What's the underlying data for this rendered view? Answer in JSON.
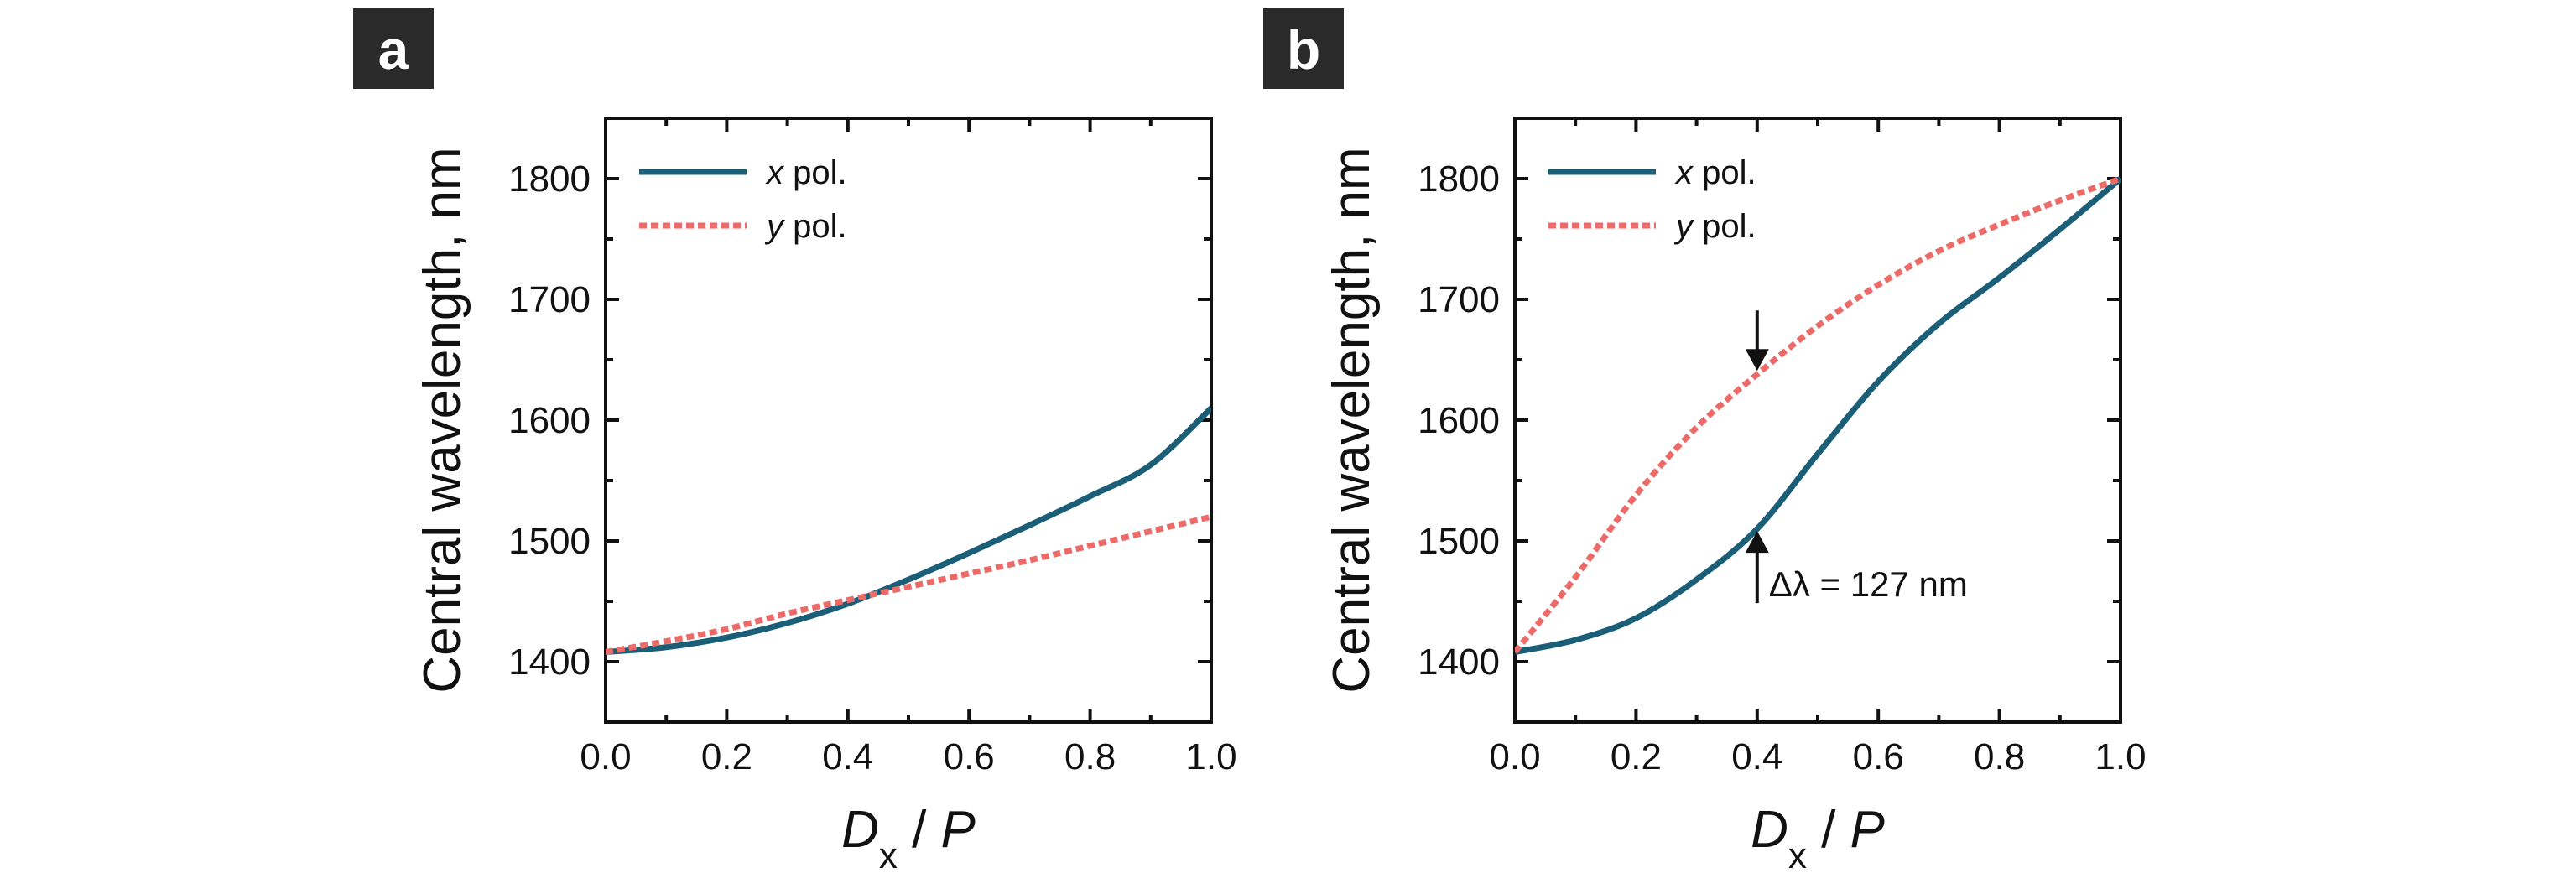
{
  "colors": {
    "x_series": "#1b5e78",
    "y_series": "#ec6a68",
    "axis": "#111111",
    "label_box": "#2a2a2a"
  },
  "chart_data": [
    {
      "panel": "a",
      "type": "line",
      "xlabel_main": "D",
      "xlabel_sub": "x",
      "xlabel_rest": " / P",
      "ylabel": "Central wavelength, nm",
      "xlim": [
        0.0,
        1.0
      ],
      "ylim": [
        1350,
        1850
      ],
      "xticks": [
        "0.0",
        "0.2",
        "0.4",
        "0.6",
        "0.8",
        "1.0"
      ],
      "yticks": [
        "1400",
        "1500",
        "1600",
        "1700",
        "1800"
      ],
      "legend": [
        {
          "symbol": "x",
          "text": " pol."
        },
        {
          "symbol": "y",
          "text": " pol."
        }
      ],
      "series": [
        {
          "name": "x pol.",
          "style": "solid",
          "x": [
            0.0,
            0.1,
            0.2,
            0.3,
            0.4,
            0.5,
            0.6,
            0.7,
            0.8,
            0.9,
            1.0
          ],
          "y": [
            1408,
            1412,
            1420,
            1432,
            1448,
            1468,
            1490,
            1513,
            1537,
            1563,
            1610
          ]
        },
        {
          "name": "y pol.",
          "style": "dotted",
          "x": [
            0.0,
            0.1,
            0.2,
            0.3,
            0.4,
            0.5,
            0.6,
            0.7,
            0.8,
            0.9,
            1.0
          ],
          "y": [
            1408,
            1417,
            1427,
            1440,
            1451,
            1462,
            1473,
            1484,
            1496,
            1508,
            1520
          ]
        }
      ],
      "annotations": []
    },
    {
      "panel": "b",
      "type": "line",
      "xlabel_main": "D",
      "xlabel_sub": "x",
      "xlabel_rest": " / P",
      "ylabel": "Central wavelength, nm",
      "xlim": [
        0.0,
        1.0
      ],
      "ylim": [
        1350,
        1850
      ],
      "xticks": [
        "0.0",
        "0.2",
        "0.4",
        "0.6",
        "0.8",
        "1.0"
      ],
      "yticks": [
        "1400",
        "1500",
        "1600",
        "1700",
        "1800"
      ],
      "legend": [
        {
          "symbol": "x",
          "text": " pol."
        },
        {
          "symbol": "y",
          "text": " pol."
        }
      ],
      "series": [
        {
          "name": "x pol.",
          "style": "solid",
          "x": [
            0.0,
            0.1,
            0.2,
            0.3,
            0.4,
            0.5,
            0.6,
            0.7,
            0.8,
            0.9,
            1.0
          ],
          "y": [
            1408,
            1418,
            1436,
            1468,
            1510,
            1572,
            1632,
            1680,
            1718,
            1758,
            1800
          ]
        },
        {
          "name": "y pol.",
          "style": "dotted",
          "x": [
            0.0,
            0.1,
            0.2,
            0.3,
            0.4,
            0.5,
            0.6,
            0.7,
            0.8,
            0.9,
            1.0
          ],
          "y": [
            1408,
            1470,
            1538,
            1594,
            1638,
            1678,
            1712,
            1740,
            1762,
            1782,
            1800
          ]
        }
      ],
      "annotations": [
        {
          "text": "Δλ = 127 nm",
          "x": 0.4,
          "y_top": 1638,
          "y_bottom": 1511
        }
      ]
    }
  ]
}
